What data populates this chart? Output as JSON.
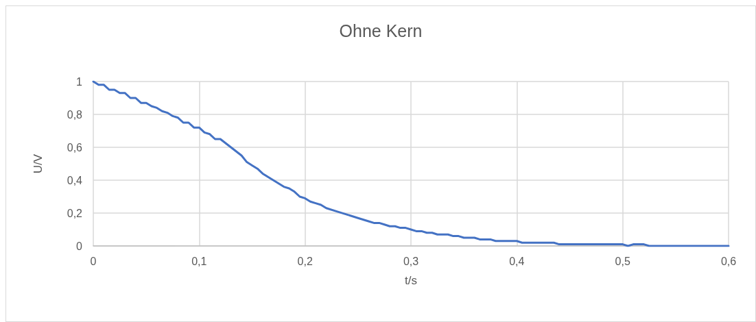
{
  "chart_data": {
    "type": "line",
    "title": "Ohne Kern",
    "xlabel": "t/s",
    "ylabel": "U/V",
    "xlim": [
      0,
      0.6
    ],
    "ylim": [
      0,
      1
    ],
    "xticks": [
      0,
      {
        "value": 0.1,
        "label": "0,1"
      },
      {
        "value": 0.2,
        "label": "0,2"
      },
      {
        "value": 0.3,
        "label": "0,3"
      },
      {
        "value": 0.4,
        "label": "0,4"
      },
      {
        "value": 0.5,
        "label": "0,5"
      },
      {
        "value": 0.6,
        "label": "0,6"
      }
    ],
    "yticks": [
      0,
      {
        "value": 0.2,
        "label": "0,2"
      },
      {
        "value": 0.4,
        "label": "0,4"
      },
      {
        "value": 0.6,
        "label": "0,6"
      },
      {
        "value": 0.8,
        "label": "0,8"
      },
      1
    ],
    "grid": true,
    "marker": "none",
    "line_style": "solid",
    "series": [
      {
        "color": "#4472c4",
        "x": [
          0,
          0.005,
          0.01,
          0.015,
          0.02,
          0.025,
          0.03,
          0.035,
          0.04,
          0.045,
          0.05,
          0.055,
          0.06,
          0.065,
          0.07,
          0.075,
          0.08,
          0.085,
          0.09,
          0.095,
          0.1,
          0.105,
          0.11,
          0.115,
          0.12,
          0.13,
          0.14,
          0.145,
          0.15,
          0.155,
          0.16,
          0.165,
          0.17,
          0.18,
          0.185,
          0.19,
          0.195,
          0.2,
          0.205,
          0.21,
          0.215,
          0.22,
          0.23,
          0.24,
          0.25,
          0.26,
          0.265,
          0.27,
          0.275,
          0.28,
          0.285,
          0.29,
          0.295,
          0.3,
          0.305,
          0.31,
          0.315,
          0.32,
          0.325,
          0.33,
          0.335,
          0.34,
          0.345,
          0.35,
          0.355,
          0.36,
          0.365,
          0.37,
          0.375,
          0.38,
          0.4,
          0.405,
          0.435,
          0.44,
          0.5,
          0.505,
          0.51,
          0.52,
          0.525,
          0.6
        ],
        "values": [
          1,
          0.98,
          0.98,
          0.95,
          0.95,
          0.93,
          0.93,
          0.9,
          0.9,
          0.87,
          0.87,
          0.85,
          0.84,
          0.82,
          0.81,
          0.79,
          0.78,
          0.75,
          0.75,
          0.72,
          0.72,
          0.69,
          0.68,
          0.65,
          0.65,
          0.6,
          0.55,
          0.51,
          0.49,
          0.47,
          0.44,
          0.42,
          0.4,
          0.36,
          0.35,
          0.33,
          0.3,
          0.29,
          0.27,
          0.26,
          0.25,
          0.23,
          0.21,
          0.19,
          0.17,
          0.15,
          0.14,
          0.14,
          0.13,
          0.12,
          0.12,
          0.11,
          0.11,
          0.1,
          0.09,
          0.09,
          0.08,
          0.08,
          0.07,
          0.07,
          0.07,
          0.06,
          0.06,
          0.05,
          0.05,
          0.05,
          0.04,
          0.04,
          0.04,
          0.03,
          0.03,
          0.02,
          0.02,
          0.01,
          0.01,
          0,
          0.01,
          0.01,
          0,
          0
        ]
      }
    ]
  }
}
